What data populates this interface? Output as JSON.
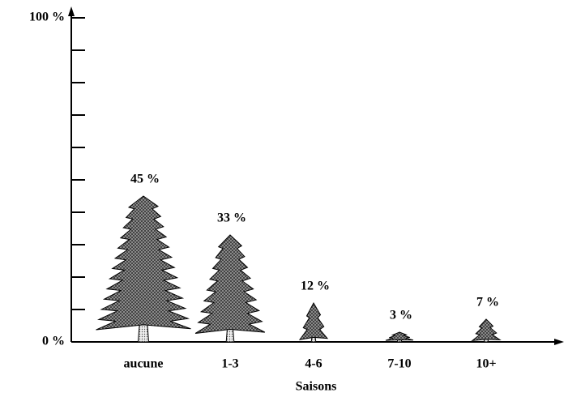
{
  "chart_data": {
    "type": "pictogram",
    "x_label": "Saisons",
    "categories": [
      "aucune",
      "1-3",
      "4-6",
      "7-10",
      "10+"
    ],
    "values": [
      45,
      33,
      12,
      3,
      7
    ],
    "value_labels": [
      "45 %",
      "33 %",
      "12 %",
      "3 %",
      "7 %"
    ],
    "ylim": [
      0,
      100
    ],
    "yticks": [
      {
        "value": 0,
        "label": "0 %"
      },
      {
        "value": 10,
        "label": null
      },
      {
        "value": 20,
        "label": null
      },
      {
        "value": 30,
        "label": null
      },
      {
        "value": 40,
        "label": null
      },
      {
        "value": 50,
        "label": null
      },
      {
        "value": 60,
        "label": null
      },
      {
        "value": 70,
        "label": null
      },
      {
        "value": 80,
        "label": null
      },
      {
        "value": 90,
        "label": null
      },
      {
        "value": 100,
        "label": "100 %"
      }
    ],
    "color": "#555555"
  }
}
